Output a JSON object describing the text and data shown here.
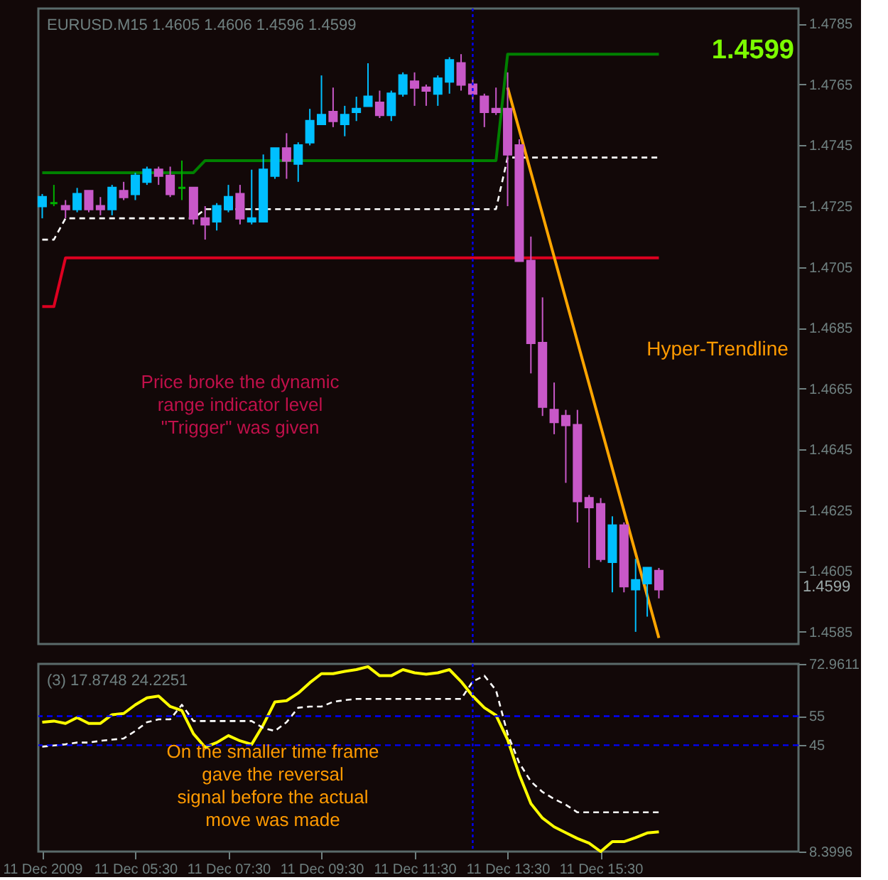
{
  "chart_data": [
    {
      "type": "candlestick",
      "title": "EURUSD.M15 1.4605 1.4606 1.4596 1.4599",
      "x": [
        "2009-12-11T03:30",
        "2009-12-11T03:45",
        "2009-12-11T04:00",
        "2009-12-11T04:15",
        "2009-12-11T04:30",
        "2009-12-11T04:45",
        "2009-12-11T05:00",
        "2009-12-11T05:15",
        "2009-12-11T05:30",
        "2009-12-11T05:45",
        "2009-12-11T06:00",
        "2009-12-11T06:15",
        "2009-12-11T06:30",
        "2009-12-11T06:45",
        "2009-12-11T07:00",
        "2009-12-11T07:15",
        "2009-12-11T07:30",
        "2009-12-11T07:45",
        "2009-12-11T08:00",
        "2009-12-11T08:15",
        "2009-12-11T08:30",
        "2009-12-11T08:45",
        "2009-12-11T09:00",
        "2009-12-11T09:15",
        "2009-12-11T09:30",
        "2009-12-11T09:45",
        "2009-12-11T10:00",
        "2009-12-11T10:15",
        "2009-12-11T10:30",
        "2009-12-11T10:45",
        "2009-12-11T11:00",
        "2009-12-11T11:15",
        "2009-12-11T11:30",
        "2009-12-11T11:45",
        "2009-12-11T12:00",
        "2009-12-11T12:15",
        "2009-12-11T12:30",
        "2009-12-11T12:45",
        "2009-12-11T13:00",
        "2009-12-11T13:15",
        "2009-12-11T13:30",
        "2009-12-11T13:45",
        "2009-12-11T14:00",
        "2009-12-11T14:15",
        "2009-12-11T14:30",
        "2009-12-11T14:45",
        "2009-12-11T15:00",
        "2009-12-11T15:15",
        "2009-12-11T15:30",
        "2009-12-11T15:45",
        "2009-12-11T16:00",
        "2009-12-11T16:15",
        "2009-12-11T16:30",
        "2009-12-11T16:45"
      ],
      "ohlc": [
        [
          1.4725,
          1.4729,
          1.4721,
          1.4728
        ],
        [
          1.4726,
          1.4732,
          1.4725,
          1.4726
        ],
        [
          1.4725,
          1.4727,
          1.4721,
          1.4724
        ],
        [
          1.4724,
          1.4731,
          1.4723,
          1.4729
        ],
        [
          1.473,
          1.473,
          1.4723,
          1.4724
        ],
        [
          1.4725,
          1.4728,
          1.4722,
          1.4724
        ],
        [
          1.4724,
          1.4732,
          1.4722,
          1.4731
        ],
        [
          1.473,
          1.4733,
          1.4727,
          1.4728
        ],
        [
          1.4729,
          1.4736,
          1.4727,
          1.4735
        ],
        [
          1.4733,
          1.4738,
          1.4732,
          1.4737
        ],
        [
          1.4737,
          1.4738,
          1.4732,
          1.4735
        ],
        [
          1.4735,
          1.4738,
          1.4728,
          1.4729
        ],
        [
          1.4731,
          1.474,
          1.4727,
          1.4731
        ],
        [
          1.4731,
          1.4731,
          1.4719,
          1.4721
        ],
        [
          1.4721,
          1.4725,
          1.4714,
          1.4719
        ],
        [
          1.472,
          1.4726,
          1.4717,
          1.4725
        ],
        [
          1.4724,
          1.4732,
          1.4723,
          1.4728
        ],
        [
          1.4729,
          1.4732,
          1.4719,
          1.4721
        ],
        [
          1.472,
          1.4737,
          1.4719,
          1.4721
        ],
        [
          1.472,
          1.4742,
          1.472,
          1.4737
        ],
        [
          1.4735,
          1.4744,
          1.4734,
          1.4744
        ],
        [
          1.4744,
          1.4749,
          1.4734,
          1.474
        ],
        [
          1.4739,
          1.4746,
          1.4733,
          1.4745
        ],
        [
          1.4746,
          1.4757,
          1.4745,
          1.4753
        ],
        [
          1.4752,
          1.4768,
          1.4752,
          1.4755
        ],
        [
          1.4756,
          1.4764,
          1.4751,
          1.4753
        ],
        [
          1.4752,
          1.4758,
          1.4748,
          1.4755
        ],
        [
          1.4756,
          1.4761,
          1.4753,
          1.4757
        ],
        [
          1.4758,
          1.4772,
          1.4758,
          1.4761
        ],
        [
          1.4759,
          1.4763,
          1.4754,
          1.4755
        ],
        [
          1.4755,
          1.4763,
          1.4753,
          1.4762
        ],
        [
          1.4762,
          1.4769,
          1.4761,
          1.4768
        ],
        [
          1.4766,
          1.4769,
          1.4758,
          1.4764
        ],
        [
          1.4764,
          1.4765,
          1.4758,
          1.4763
        ],
        [
          1.4762,
          1.4768,
          1.4758,
          1.4767
        ],
        [
          1.4766,
          1.4774,
          1.4762,
          1.4773
        ],
        [
          1.4772,
          1.4775,
          1.4763,
          1.4765
        ],
        [
          1.4765,
          1.4767,
          1.476,
          1.4762
        ],
        [
          1.4761,
          1.4762,
          1.4751,
          1.4756
        ],
        [
          1.4757,
          1.4764,
          1.4755,
          1.4756
        ],
        [
          1.4757,
          1.4769,
          1.4725,
          1.4742
        ],
        [
          1.4745,
          1.4747,
          1.4707,
          1.4707
        ],
        [
          1.4707,
          1.4715,
          1.467,
          1.468
        ],
        [
          1.468,
          1.4695,
          1.4656,
          1.4659
        ],
        [
          1.4658,
          1.4667,
          1.465,
          1.4654
        ],
        [
          1.4656,
          1.4658,
          1.4634,
          1.4653
        ],
        [
          1.4653,
          1.4658,
          1.4621,
          1.4628
        ],
        [
          1.4629,
          1.463,
          1.4606,
          1.4626
        ],
        [
          1.4627,
          1.4629,
          1.4608,
          1.4609
        ],
        [
          1.4608,
          1.4623,
          1.4598,
          1.462
        ],
        [
          1.462,
          1.4621,
          1.4598,
          1.46
        ],
        [
          1.4599,
          1.4609,
          1.4585,
          1.4602
        ],
        [
          1.4601,
          1.4606,
          1.459,
          1.4606
        ],
        [
          1.4605,
          1.4606,
          1.4596,
          1.4599
        ]
      ],
      "colors": [
        "#00bfff",
        "#00b000",
        "#c858c8",
        "#00bfff",
        "#c858c8",
        "#c858c8",
        "#00bfff",
        "#c858c8",
        "#00bfff",
        "#00bfff",
        "#c858c8",
        "#c858c8",
        "#00b000",
        "#c858c8",
        "#c858c8",
        "#00bfff",
        "#00bfff",
        "#c858c8",
        "#00bfff",
        "#00bfff",
        "#00bfff",
        "#c858c8",
        "#00bfff",
        "#00bfff",
        "#00bfff",
        "#c858c8",
        "#00bfff",
        "#00bfff",
        "#00bfff",
        "#c858c8",
        "#00bfff",
        "#00bfff",
        "#c858c8",
        "#c858c8",
        "#00bfff",
        "#00bfff",
        "#c858c8",
        "#c858c8",
        "#c858c8",
        "#c858c8",
        "#c858c8",
        "#c858c8",
        "#c858c8",
        "#c858c8",
        "#c858c8",
        "#c858c8",
        "#c858c8",
        "#c858c8",
        "#c858c8",
        "#00bfff",
        "#c858c8",
        "#00bfff",
        "#00bfff",
        "#c858c8"
      ],
      "series": [
        {
          "type": "line",
          "color": "#008000",
          "x": [
            "2009-12-11T03:30",
            "2009-12-11T06:45",
            "2009-12-11T07:00",
            "2009-12-11T13:15",
            "2009-12-11T13:30",
            "2009-12-11T16:45"
          ],
          "values": [
            1.4736,
            1.4736,
            1.474,
            1.474,
            1.4775,
            1.4775
          ]
        },
        {
          "type": "line",
          "color": "#ffffff",
          "line_style": "dashed",
          "x": [
            "2009-12-11T03:30",
            "2009-12-11T03:45",
            "2009-12-11T04:00",
            "2009-12-11T06:45",
            "2009-12-11T07:00",
            "2009-12-11T13:15",
            "2009-12-11T13:30",
            "2009-12-11T16:45"
          ],
          "values": [
            1.4714,
            1.4714,
            1.4721,
            1.4721,
            1.4724,
            1.4724,
            1.4741,
            1.4741
          ]
        },
        {
          "type": "line",
          "color": "#dd0020",
          "x": [
            "2009-12-11T03:30",
            "2009-12-11T03:45",
            "2009-12-11T04:00",
            "2009-12-11T16:45"
          ],
          "values": [
            1.4692,
            1.4692,
            1.4708,
            1.4708
          ]
        },
        {
          "type": "line",
          "color": "#ffa500",
          "x": [
            "2009-12-11T13:30",
            "2009-12-11T16:45"
          ],
          "values": [
            1.4764,
            1.4583
          ]
        }
      ],
      "xlim": [
        "2009-12-11T03:25",
        "2009-12-11T19:45"
      ],
      "ylim": [
        1.4581,
        1.479
      ],
      "yticks": [
        1.4785,
        1.4765,
        1.4745,
        1.4725,
        1.4705,
        1.4685,
        1.4665,
        1.4645,
        1.4625,
        1.4605,
        1.4585
      ],
      "tick_labels": "y",
      "ref_lines": [
        {
          "axis": "x",
          "value": "2009-12-11T12:45",
          "color": "#0000ff",
          "line_style": "dotted"
        }
      ],
      "annotations": [
        "1.4599",
        "Price broke the dynamic\nrange indicator level\n\"Trigger\" was given",
        "Hyper-Trendline",
        "1.4599"
      ]
    },
    {
      "type": "line",
      "title": "(3) 17.8748 24.2251",
      "x": [
        "2009-12-11T03:30",
        "2009-12-11T03:45",
        "2009-12-11T04:00",
        "2009-12-11T04:15",
        "2009-12-11T04:30",
        "2009-12-11T04:45",
        "2009-12-11T05:00",
        "2009-12-11T05:15",
        "2009-12-11T05:30",
        "2009-12-11T05:45",
        "2009-12-11T06:00",
        "2009-12-11T06:15",
        "2009-12-11T06:30",
        "2009-12-11T06:45",
        "2009-12-11T07:00",
        "2009-12-11T07:15",
        "2009-12-11T07:30",
        "2009-12-11T07:45",
        "2009-12-11T08:00",
        "2009-12-11T08:15",
        "2009-12-11T08:30",
        "2009-12-11T08:45",
        "2009-12-11T09:00",
        "2009-12-11T09:15",
        "2009-12-11T09:30",
        "2009-12-11T09:45",
        "2009-12-11T10:00",
        "2009-12-11T10:15",
        "2009-12-11T10:30",
        "2009-12-11T10:45",
        "2009-12-11T11:00",
        "2009-12-11T11:15",
        "2009-12-11T11:30",
        "2009-12-11T11:45",
        "2009-12-11T12:00",
        "2009-12-11T12:15",
        "2009-12-11T12:30",
        "2009-12-11T12:45",
        "2009-12-11T13:00",
        "2009-12-11T13:15",
        "2009-12-11T13:30",
        "2009-12-11T13:45",
        "2009-12-11T14:00",
        "2009-12-11T14:15",
        "2009-12-11T14:30",
        "2009-12-11T14:45",
        "2009-12-11T15:00",
        "2009-12-11T15:15",
        "2009-12-11T15:30",
        "2009-12-11T15:45",
        "2009-12-11T16:00",
        "2009-12-11T16:15",
        "2009-12-11T16:30",
        "2009-12-11T16:45"
      ],
      "series": [
        {
          "color": "#ffff00",
          "values": [
            52.9,
            53.3,
            52.5,
            54.5,
            52.5,
            52.5,
            55.5,
            55.9,
            58.9,
            61.3,
            61.9,
            58.3,
            56.9,
            48.9,
            44.3,
            45.9,
            48.3,
            46.5,
            45.3,
            52.0,
            59.9,
            60.3,
            62.9,
            66.5,
            69.6,
            69.6,
            70.4,
            71.0,
            72.0,
            68.9,
            68.9,
            71.0,
            69.9,
            69.4,
            69.9,
            71.0,
            66.9,
            61.9,
            57.9,
            55.3,
            46.9,
            34.9,
            24.9,
            19.9,
            16.9,
            14.9,
            12.9,
            11.3,
            8.4,
            11.8,
            11.8,
            13.2,
            14.8,
            15.2
          ]
        },
        {
          "color": "#ffffff",
          "line_style": "dashed",
          "values": [
            44.5,
            44.9,
            45.3,
            45.9,
            45.9,
            46.5,
            46.9,
            47.3,
            49.9,
            52.9,
            53.9,
            53.9,
            58.9,
            53.3,
            53.3,
            53.3,
            53.3,
            53.3,
            53.3,
            50.9,
            49.9,
            52.9,
            57.9,
            58.3,
            58.3,
            59.9,
            60.5,
            60.9,
            60.9,
            60.9,
            60.9,
            60.9,
            60.9,
            60.9,
            60.9,
            60.9,
            60.9,
            66.9,
            68.9,
            63.9,
            48.9,
            38.9,
            32.5,
            28.9,
            26.5,
            24.5,
            21.9,
            21.9,
            21.9,
            21.9,
            21.9,
            21.9,
            21.9,
            21.9
          ]
        }
      ],
      "xlim": [
        "2009-12-11T03:25",
        "2009-12-11T19:45"
      ],
      "ylim": [
        8.3996,
        72.9611
      ],
      "yticks": [
        72.9611,
        55,
        45,
        8.3996
      ],
      "xticks": [
        {
          "value": "2009-12-11T03:30",
          "label": "11 Dec 2009"
        },
        {
          "value": "2009-12-11T05:30",
          "label": "11 Dec 05:30"
        },
        {
          "value": "2009-12-11T07:30",
          "label": "11 Dec 07:30"
        },
        {
          "value": "2009-12-11T09:30",
          "label": "11 Dec 09:30"
        },
        {
          "value": "2009-12-11T11:30",
          "label": "11 Dec 11:30"
        },
        {
          "value": "2009-12-11T13:30",
          "label": "11 Dec 13:30"
        },
        {
          "value": "2009-12-11T15:30",
          "label": "11 Dec 15:30"
        }
      ],
      "ref_lines": [
        {
          "axis": "y",
          "value": 55,
          "color": "#0000ff",
          "line_style": "dashed"
        },
        {
          "axis": "y",
          "value": 45,
          "color": "#0000ff",
          "line_style": "dashed"
        },
        {
          "axis": "x",
          "value": "2009-12-11T12:45",
          "color": "#0000ff",
          "line_style": "dotted"
        }
      ],
      "annotations": [
        "On the smaller time frame\ngave the reversal\nsignal before the actual\nmove was made"
      ]
    }
  ]
}
